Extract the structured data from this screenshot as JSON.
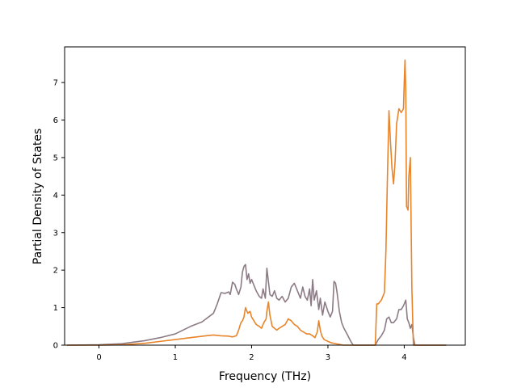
{
  "chart_data": {
    "type": "line",
    "title": "",
    "xlabel": "Frequency (THz)",
    "ylabel": "Partial Density of States",
    "xlim": [
      -0.45,
      4.8
    ],
    "ylim": [
      0,
      7.95
    ],
    "xticks": [
      0,
      1,
      2,
      3,
      4
    ],
    "yticks": [
      0,
      1,
      2,
      3,
      4,
      5,
      6,
      7
    ],
    "grid": false,
    "legend": "none",
    "series": [
      {
        "color": "#8c7b85",
        "x": [
          -0.42,
          0.0,
          0.3,
          0.6,
          0.8,
          1.0,
          1.2,
          1.35,
          1.5,
          1.55,
          1.6,
          1.65,
          1.7,
          1.72,
          1.75,
          1.78,
          1.8,
          1.83,
          1.86,
          1.88,
          1.9,
          1.92,
          1.94,
          1.96,
          1.98,
          2.0,
          2.03,
          2.06,
          2.1,
          2.13,
          2.15,
          2.18,
          2.2,
          2.22,
          2.24,
          2.27,
          2.3,
          2.33,
          2.36,
          2.4,
          2.44,
          2.48,
          2.52,
          2.56,
          2.6,
          2.64,
          2.67,
          2.7,
          2.73,
          2.76,
          2.78,
          2.8,
          2.82,
          2.85,
          2.88,
          2.9,
          2.93,
          2.96,
          3.0,
          3.03,
          3.06,
          3.08,
          3.1,
          3.12,
          3.15,
          3.18,
          3.21,
          3.25,
          3.3,
          3.33,
          3.4,
          3.5,
          3.62,
          3.66,
          3.7,
          3.74,
          3.77,
          3.8,
          3.83,
          3.86,
          3.9,
          3.93,
          3.96,
          3.99,
          4.02,
          4.04,
          4.06,
          4.08,
          4.1,
          4.12,
          4.14,
          4.16,
          4.3,
          4.55
        ],
        "values": [
          0,
          0.01,
          0.04,
          0.12,
          0.2,
          0.3,
          0.5,
          0.62,
          0.85,
          1.1,
          1.4,
          1.38,
          1.42,
          1.35,
          1.68,
          1.62,
          1.5,
          1.35,
          1.55,
          1.95,
          2.1,
          2.15,
          1.75,
          1.9,
          1.65,
          1.75,
          1.6,
          1.45,
          1.3,
          1.25,
          1.5,
          1.25,
          2.05,
          1.7,
          1.35,
          1.3,
          1.45,
          1.25,
          1.2,
          1.3,
          1.15,
          1.25,
          1.55,
          1.65,
          1.45,
          1.25,
          1.55,
          1.3,
          1.2,
          1.5,
          1.05,
          1.75,
          1.2,
          1.45,
          0.95,
          1.25,
          0.8,
          1.15,
          0.9,
          0.75,
          0.9,
          1.7,
          1.65,
          1.4,
          0.9,
          0.6,
          0.45,
          0.3,
          0.1,
          0.0,
          0.0,
          0.0,
          0.0,
          0.15,
          0.25,
          0.4,
          0.7,
          0.75,
          0.6,
          0.6,
          0.7,
          0.95,
          0.95,
          1.05,
          1.2,
          0.7,
          0.6,
          0.45,
          0.55,
          0.2,
          0.0,
          0.0,
          0.0,
          0.0
        ]
      },
      {
        "color": "#e8842a",
        "x": [
          -0.42,
          0.0,
          0.3,
          0.6,
          0.8,
          1.0,
          1.2,
          1.4,
          1.5,
          1.6,
          1.7,
          1.75,
          1.8,
          1.83,
          1.86,
          1.88,
          1.9,
          1.92,
          1.95,
          1.98,
          2.0,
          2.03,
          2.06,
          2.1,
          2.13,
          2.16,
          2.19,
          2.2,
          2.22,
          2.24,
          2.27,
          2.3,
          2.33,
          2.36,
          2.4,
          2.44,
          2.48,
          2.52,
          2.56,
          2.6,
          2.64,
          2.68,
          2.72,
          2.76,
          2.8,
          2.83,
          2.86,
          2.88,
          2.9,
          2.92,
          2.95,
          2.98,
          3.0,
          3.05,
          3.1,
          3.15,
          3.2,
          3.25,
          3.3,
          3.35,
          3.5,
          3.62,
          3.64,
          3.66,
          3.7,
          3.74,
          3.76,
          3.78,
          3.8,
          3.82,
          3.84,
          3.86,
          3.88,
          3.9,
          3.93,
          3.96,
          3.99,
          4.0,
          4.01,
          4.02,
          4.03,
          4.05,
          4.06,
          4.08,
          4.1,
          4.12,
          4.14,
          4.16,
          4.3,
          4.55
        ],
        "values": [
          0,
          0.0,
          0.01,
          0.05,
          0.1,
          0.15,
          0.2,
          0.25,
          0.27,
          0.25,
          0.24,
          0.22,
          0.25,
          0.4,
          0.6,
          0.65,
          0.75,
          1.0,
          0.85,
          0.9,
          0.75,
          0.65,
          0.55,
          0.5,
          0.45,
          0.6,
          0.7,
          0.9,
          1.15,
          0.8,
          0.5,
          0.45,
          0.4,
          0.45,
          0.5,
          0.55,
          0.7,
          0.65,
          0.55,
          0.5,
          0.4,
          0.35,
          0.3,
          0.3,
          0.25,
          0.2,
          0.35,
          0.65,
          0.4,
          0.25,
          0.15,
          0.12,
          0.1,
          0.06,
          0.04,
          0.02,
          0.0,
          0.0,
          0.0,
          0.0,
          0.0,
          0.0,
          1.1,
          1.1,
          1.2,
          1.4,
          2.5,
          4.5,
          6.25,
          5.4,
          4.7,
          4.3,
          4.9,
          5.9,
          6.3,
          6.2,
          6.3,
          7.0,
          7.6,
          6.8,
          3.7,
          3.6,
          4.5,
          5.0,
          1.5,
          0.0,
          0.0,
          0.0,
          0.0,
          0.0
        ]
      }
    ]
  }
}
